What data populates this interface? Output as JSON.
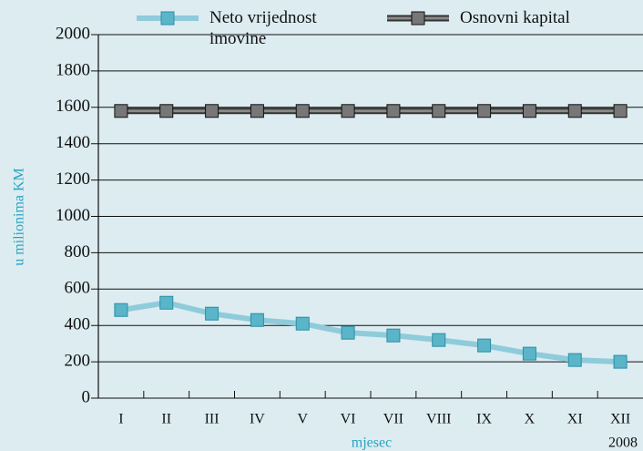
{
  "chart_data": {
    "type": "line",
    "categories": [
      "I",
      "II",
      "III",
      "IV",
      "V",
      "VI",
      "VII",
      "VIII",
      "IX",
      "X",
      "XI",
      "XII"
    ],
    "series": [
      {
        "name": "Neto vrijednost imovine",
        "color": "#5bb5c8",
        "line_color": "#8fcbdb",
        "values": [
          485,
          525,
          465,
          430,
          410,
          360,
          345,
          320,
          290,
          245,
          210,
          200
        ]
      },
      {
        "name": "Osnovni kapital",
        "color": "#777777",
        "line_color": "#8a8a8a",
        "values": [
          1580,
          1580,
          1580,
          1580,
          1580,
          1580,
          1580,
          1580,
          1580,
          1580,
          1580,
          1580
        ]
      }
    ],
    "ylim": [
      0,
      2000
    ],
    "yticks": [
      0,
      200,
      400,
      600,
      800,
      1000,
      1200,
      1400,
      1600,
      1800,
      2000
    ],
    "ylabel": "u milionima KM",
    "xlabel": "mjesec",
    "annotation": "2008",
    "grid": true
  }
}
